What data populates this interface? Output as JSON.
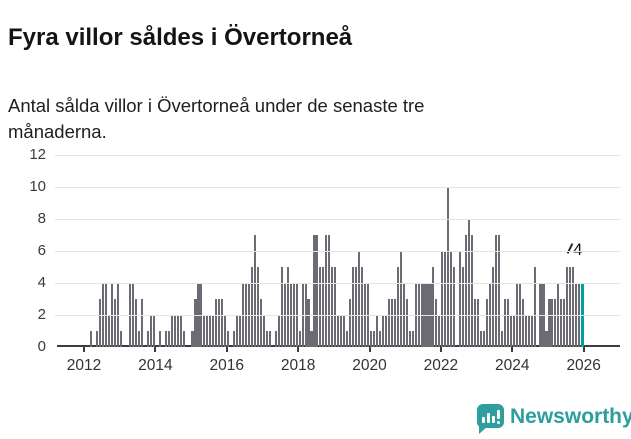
{
  "header": {
    "title": "Fyra villor såldes i Övertorneå",
    "subtitle": "Antal sålda villor i Övertorneå under de senaste tre månaderna."
  },
  "chart_data": {
    "type": "bar",
    "title": "Fyra villor såldes i Övertorneå",
    "subtitle": "Antal sålda villor i Övertorneå under de senaste tre månaderna.",
    "xlabel": "",
    "ylabel": "",
    "ylim": [
      0,
      12
    ],
    "y_ticks": [
      0,
      2,
      4,
      6,
      8,
      10,
      12
    ],
    "x_tick_labels": [
      "2012",
      "2014",
      "2016",
      "2018",
      "2020",
      "2022",
      "2024",
      "2026"
    ],
    "frequency": "monthly",
    "start_month": "2012-01",
    "grid": "horizontal",
    "legend": "none",
    "values": [
      0,
      0,
      1,
      0,
      1,
      3,
      4,
      4,
      2,
      4,
      3,
      4,
      1,
      0,
      0,
      4,
      4,
      3,
      1,
      3,
      0,
      1,
      2,
      2,
      0,
      1,
      0,
      1,
      1,
      2,
      2,
      2,
      2,
      1,
      0,
      0,
      1,
      3,
      4,
      4,
      2,
      2,
      2,
      2,
      3,
      3,
      3,
      2,
      1,
      0,
      1,
      2,
      2,
      4,
      4,
      4,
      5,
      7,
      5,
      3,
      2,
      1,
      1,
      0,
      1,
      2,
      5,
      4,
      5,
      4,
      4,
      4,
      1,
      4,
      4,
      3,
      1,
      7,
      7,
      5,
      5,
      7,
      7,
      5,
      5,
      2,
      2,
      2,
      1,
      3,
      5,
      5,
      6,
      5,
      4,
      4,
      1,
      1,
      2,
      1,
      2,
      2,
      3,
      3,
      3,
      5,
      6,
      4,
      3,
      1,
      1,
      4,
      4,
      4,
      4,
      4,
      4,
      5,
      3,
      2,
      6,
      6,
      10,
      6,
      5,
      0,
      6,
      5,
      7,
      8,
      7,
      3,
      3,
      1,
      1,
      3,
      4,
      5,
      7,
      7,
      1,
      3,
      3,
      2,
      2,
      4,
      4,
      3,
      2,
      2,
      2,
      5,
      0,
      4,
      4,
      1,
      3,
      3,
      3,
      4,
      3,
      3,
      5,
      5,
      5,
      4,
      4,
      4
    ],
    "annotation": {
      "label": "4",
      "value": 4,
      "applies_to": "last-bar"
    },
    "colors": {
      "bar": "#6c6b74",
      "highlight_bar": "#00a1a3",
      "grid": "#e4e4e4",
      "axis": "#3d3d3d",
      "tick_text": "#333333",
      "brand_teal": "#2e9e9e"
    }
  },
  "footer": {
    "logo_text": "Newsworthy",
    "logo_icon": "speech-bubble-bar-chart-icon"
  }
}
